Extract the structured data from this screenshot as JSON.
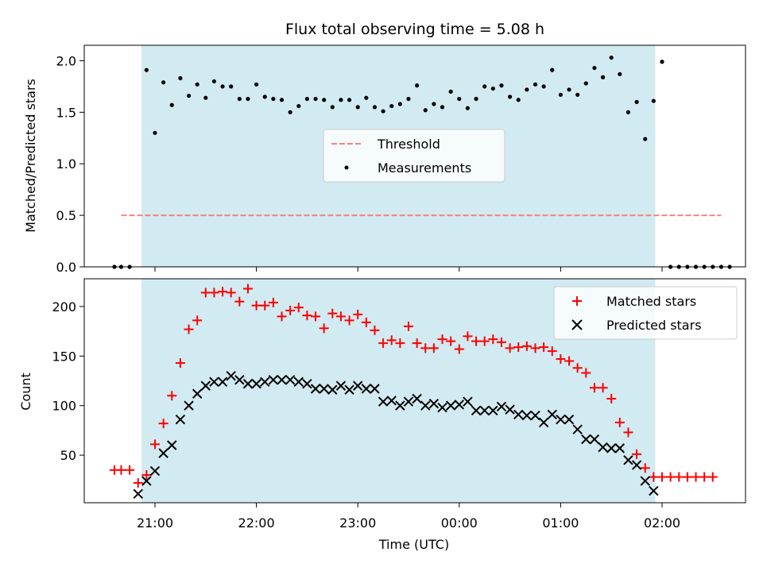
{
  "chart_data": [
    {
      "type": "scatter",
      "title": "Flux total observing time = 5.08 h",
      "xlabel": "",
      "ylabel": "Matched/Predicted stars",
      "ylim": [
        0,
        2.15
      ],
      "yticks": [
        "0.0",
        "0.5",
        "1.0",
        "1.5",
        "2.0"
      ],
      "shaded_span": [
        "20:52",
        "01:56"
      ],
      "shade_color": "#add8e6",
      "legend_position": "center",
      "series": [
        {
          "name": "Threshold",
          "kind": "dashed-line",
          "color": "#ff7f7f",
          "x_range": [
            "20:40",
            "02:35"
          ],
          "value": 0.5
        },
        {
          "name": "Measurements",
          "kind": "dots",
          "color": "#000000",
          "points": [
            [
              "20:36",
              0
            ],
            [
              "20:40",
              0
            ],
            [
              "20:45",
              0
            ],
            [
              "20:55",
              1.91
            ],
            [
              "21:00",
              1.3
            ],
            [
              "21:05",
              1.79
            ],
            [
              "21:10",
              1.57
            ],
            [
              "21:15",
              1.83
            ],
            [
              "21:20",
              1.66
            ],
            [
              "21:25",
              1.77
            ],
            [
              "21:30",
              1.64
            ],
            [
              "21:35",
              1.8
            ],
            [
              "21:40",
              1.75
            ],
            [
              "21:45",
              1.75
            ],
            [
              "21:50",
              1.63
            ],
            [
              "21:55",
              1.63
            ],
            [
              "22:00",
              1.77
            ],
            [
              "22:05",
              1.65
            ],
            [
              "22:10",
              1.63
            ],
            [
              "22:15",
              1.62
            ],
            [
              "22:20",
              1.5
            ],
            [
              "22:25",
              1.56
            ],
            [
              "22:30",
              1.63
            ],
            [
              "22:35",
              1.63
            ],
            [
              "22:40",
              1.62
            ],
            [
              "22:45",
              1.55
            ],
            [
              "22:50",
              1.62
            ],
            [
              "22:55",
              1.62
            ],
            [
              "23:00",
              1.55
            ],
            [
              "23:05",
              1.64
            ],
            [
              "23:10",
              1.55
            ],
            [
              "23:15",
              1.51
            ],
            [
              "23:20",
              1.56
            ],
            [
              "23:25",
              1.58
            ],
            [
              "23:30",
              1.63
            ],
            [
              "23:35",
              1.76
            ],
            [
              "23:40",
              1.52
            ],
            [
              "23:45",
              1.58
            ],
            [
              "23:50",
              1.55
            ],
            [
              "23:55",
              1.7
            ],
            [
              "00:00",
              1.63
            ],
            [
              "00:05",
              1.54
            ],
            [
              "00:10",
              1.63
            ],
            [
              "00:15",
              1.75
            ],
            [
              "00:20",
              1.73
            ],
            [
              "00:25",
              1.76
            ],
            [
              "00:30",
              1.65
            ],
            [
              "00:35",
              1.62
            ],
            [
              "00:40",
              1.72
            ],
            [
              "00:45",
              1.77
            ],
            [
              "00:50",
              1.75
            ],
            [
              "00:55",
              1.91
            ],
            [
              "01:00",
              1.67
            ],
            [
              "01:05",
              1.72
            ],
            [
              "01:10",
              1.67
            ],
            [
              "01:15",
              1.78
            ],
            [
              "01:20",
              1.93
            ],
            [
              "01:25",
              1.84
            ],
            [
              "01:30",
              2.03
            ],
            [
              "01:35",
              1.87
            ],
            [
              "01:40",
              1.5
            ],
            [
              "01:45",
              1.6
            ],
            [
              "01:50",
              1.24
            ],
            [
              "01:55",
              1.61
            ],
            [
              "02:00",
              1.99
            ],
            [
              "02:05",
              0
            ],
            [
              "02:10",
              0
            ],
            [
              "02:15",
              0
            ],
            [
              "02:20",
              0
            ],
            [
              "02:25",
              0
            ],
            [
              "02:30",
              0
            ],
            [
              "02:35",
              0
            ],
            [
              "02:40",
              0
            ]
          ]
        }
      ]
    },
    {
      "type": "scatter",
      "title": "",
      "xlabel": "Time (UTC)",
      "ylabel": "Count",
      "ylim": [
        2,
        228
      ],
      "yticks": [
        "50",
        "100",
        "150",
        "200"
      ],
      "xticks": [
        "21:00",
        "22:00",
        "23:00",
        "00:00",
        "01:00",
        "02:00"
      ],
      "shaded_span": [
        "20:52",
        "01:56"
      ],
      "shade_color": "#add8e6",
      "legend_position": "upper right",
      "series": [
        {
          "name": "Matched stars",
          "marker": "+",
          "color": "#ff0000",
          "points": [
            [
              "20:36",
              35
            ],
            [
              "20:40",
              35
            ],
            [
              "20:45",
              35
            ],
            [
              "20:50",
              22
            ],
            [
              "20:55",
              30
            ],
            [
              "21:00",
              61
            ],
            [
              "21:05",
              82
            ],
            [
              "21:10",
              110
            ],
            [
              "21:15",
              143
            ],
            [
              "21:20",
              177
            ],
            [
              "21:25",
              186
            ],
            [
              "21:30",
              214
            ],
            [
              "21:35",
              214
            ],
            [
              "21:40",
              215
            ],
            [
              "21:45",
              214
            ],
            [
              "21:50",
              205
            ],
            [
              "21:55",
              218
            ],
            [
              "22:00",
              201
            ],
            [
              "22:05",
              201
            ],
            [
              "22:10",
              204
            ],
            [
              "22:15",
              190
            ],
            [
              "22:20",
              196
            ],
            [
              "22:25",
              199
            ],
            [
              "22:30",
              191
            ],
            [
              "22:35",
              190
            ],
            [
              "22:40",
              178
            ],
            [
              "22:45",
              193
            ],
            [
              "22:50",
              190
            ],
            [
              "22:55",
              186
            ],
            [
              "23:00",
              192
            ],
            [
              "23:05",
              184
            ],
            [
              "23:10",
              176
            ],
            [
              "23:15",
              163
            ],
            [
              "23:20",
              166
            ],
            [
              "23:25",
              163
            ],
            [
              "23:30",
              180
            ],
            [
              "23:35",
              163
            ],
            [
              "23:40",
              158
            ],
            [
              "23:45",
              158
            ],
            [
              "23:50",
              167
            ],
            [
              "23:55",
              165
            ],
            [
              "00:00",
              157
            ],
            [
              "00:05",
              170
            ],
            [
              "00:10",
              165
            ],
            [
              "00:15",
              165
            ],
            [
              "00:20",
              167
            ],
            [
              "00:25",
              164
            ],
            [
              "00:30",
              158
            ],
            [
              "00:35",
              159
            ],
            [
              "00:40",
              160
            ],
            [
              "00:45",
              158
            ],
            [
              "00:50",
              159
            ],
            [
              "00:55",
              155
            ],
            [
              "01:00",
              147
            ],
            [
              "01:05",
              145
            ],
            [
              "01:10",
              138
            ],
            [
              "01:15",
              133
            ],
            [
              "01:20",
              118
            ],
            [
              "01:25",
              118
            ],
            [
              "01:30",
              107
            ],
            [
              "01:35",
              83
            ],
            [
              "01:40",
              73
            ],
            [
              "01:45",
              51
            ],
            [
              "01:50",
              37
            ],
            [
              "01:55",
              28
            ],
            [
              "02:00",
              28
            ],
            [
              "02:05",
              28
            ],
            [
              "02:10",
              28
            ],
            [
              "02:15",
              28
            ],
            [
              "02:20",
              28
            ],
            [
              "02:25",
              28
            ],
            [
              "02:30",
              28
            ]
          ]
        },
        {
          "name": "Predicted stars",
          "marker": "x",
          "color": "#000000",
          "points": [
            [
              "20:50",
              11
            ],
            [
              "20:55",
              24
            ],
            [
              "21:00",
              34
            ],
            [
              "21:05",
              52
            ],
            [
              "21:10",
              60
            ],
            [
              "21:15",
              86
            ],
            [
              "21:20",
              100
            ],
            [
              "21:25",
              112
            ],
            [
              "21:30",
              120
            ],
            [
              "21:35",
              124
            ],
            [
              "21:40",
              124
            ],
            [
              "21:45",
              130
            ],
            [
              "21:50",
              126
            ],
            [
              "21:55",
              122
            ],
            [
              "22:00",
              122
            ],
            [
              "22:05",
              124
            ],
            [
              "22:10",
              126
            ],
            [
              "22:15",
              126
            ],
            [
              "22:20",
              126
            ],
            [
              "22:25",
              124
            ],
            [
              "22:30",
              122
            ],
            [
              "22:35",
              117
            ],
            [
              "22:40",
              117
            ],
            [
              "22:45",
              116
            ],
            [
              "22:50",
              120
            ],
            [
              "22:55",
              116
            ],
            [
              "23:00",
              120
            ],
            [
              "23:05",
              117
            ],
            [
              "23:10",
              117
            ],
            [
              "23:15",
              104
            ],
            [
              "23:20",
              105
            ],
            [
              "23:25",
              100
            ],
            [
              "23:30",
              104
            ],
            [
              "23:35",
              107
            ],
            [
              "23:40",
              100
            ],
            [
              "23:45",
              102
            ],
            [
              "23:50",
              98
            ],
            [
              "23:55",
              100
            ],
            [
              "00:00",
              101
            ],
            [
              "00:05",
              104
            ],
            [
              "00:10",
              95
            ],
            [
              "00:15",
              95
            ],
            [
              "00:20",
              95
            ],
            [
              "00:25",
              99
            ],
            [
              "00:30",
              96
            ],
            [
              "00:35",
              91
            ],
            [
              "00:40",
              90
            ],
            [
              "00:45",
              90
            ],
            [
              "00:50",
              83
            ],
            [
              "00:55",
              91
            ],
            [
              "01:00",
              86
            ],
            [
              "01:05",
              86
            ],
            [
              "01:10",
              76
            ],
            [
              "01:15",
              66
            ],
            [
              "01:20",
              66
            ],
            [
              "01:25",
              58
            ],
            [
              "01:30",
              57
            ],
            [
              "01:35",
              57
            ],
            [
              "01:40",
              45
            ],
            [
              "01:45",
              40
            ],
            [
              "01:50",
              24
            ],
            [
              "01:55",
              14
            ]
          ]
        }
      ]
    }
  ]
}
